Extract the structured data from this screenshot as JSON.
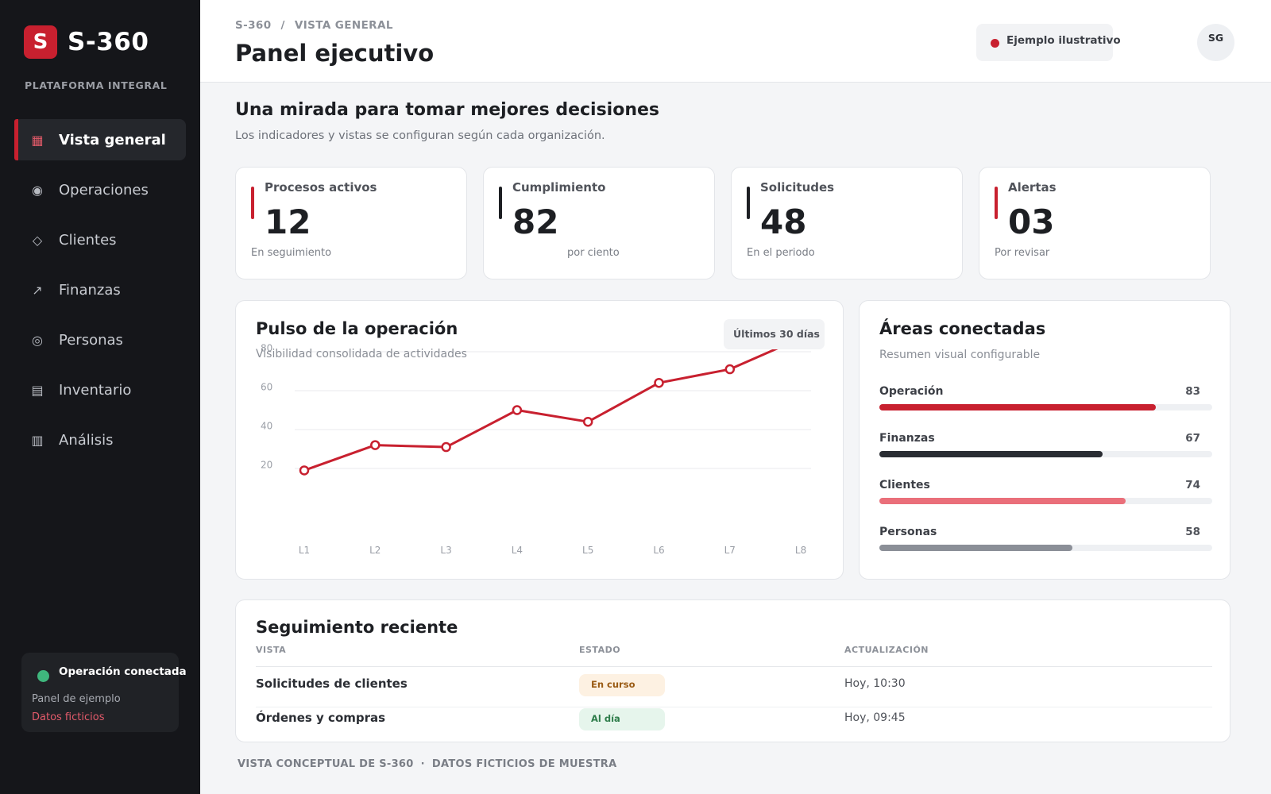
{
  "brand": {
    "mark": "S",
    "name": "S-360",
    "tagline": "PLATAFORMA INTEGRAL"
  },
  "sidebar": {
    "items": [
      {
        "label": "Vista general",
        "icon": "grid-icon",
        "glyph": "▦",
        "active": true
      },
      {
        "label": "Operaciones",
        "icon": "radio-icon",
        "glyph": "◉",
        "active": false
      },
      {
        "label": "Clientes",
        "icon": "diamond-icon",
        "glyph": "◇",
        "active": false
      },
      {
        "label": "Finanzas",
        "icon": "trend-arrow-icon",
        "glyph": "↗",
        "active": false
      },
      {
        "label": "Personas",
        "icon": "target-icon",
        "glyph": "◎",
        "active": false
      },
      {
        "label": "Inventario",
        "icon": "list-box-icon",
        "glyph": "▤",
        "active": false
      },
      {
        "label": "Análisis",
        "icon": "bars-box-icon",
        "glyph": "▥",
        "active": false
      }
    ],
    "status": {
      "title": "Operación conectada",
      "subtitle": "Panel de ejemplo",
      "note": "Datos ficticios"
    }
  },
  "header": {
    "breadcrumb": [
      "S-360",
      "/",
      "VISTA GENERAL"
    ],
    "title": "Panel ejecutivo",
    "badge": "Ejemplo ilustrativo",
    "avatar": "SG"
  },
  "intro": {
    "title": "Una mirada para tomar mejores decisiones",
    "subtitle": "Los indicadores y vistas se configuran según cada organización."
  },
  "kpis": [
    {
      "label": "Procesos activos",
      "value": "12",
      "sub": "En seguimiento",
      "accent": "#c8202f"
    },
    {
      "label": "Cumplimiento",
      "value": "82",
      "sub": "por ciento",
      "accent": "#1d1f23"
    },
    {
      "label": "Solicitudes",
      "value": "48",
      "sub": "En el periodo",
      "accent": "#1d1f23"
    },
    {
      "label": "Alertas",
      "value": "03",
      "sub": "Por revisar",
      "accent": "#c8202f"
    }
  ],
  "pulse": {
    "title": "Pulso de la operación",
    "subtitle": "Visibilidad consolidada de actividades",
    "range": "Últimos 30 días"
  },
  "chart_data": {
    "type": "line",
    "categories": [
      "L1",
      "L2",
      "L3",
      "L4",
      "L5",
      "L6",
      "L7",
      "L8"
    ],
    "series": [
      {
        "values": [
          19,
          32,
          31,
          50,
          44,
          64,
          71,
          87
        ],
        "color": "#c8202f"
      }
    ],
    "yticks": [
      20,
      40,
      60,
      80
    ],
    "ylim": [
      0,
      80
    ],
    "grid": true,
    "xlabel": "",
    "ylabel": ""
  },
  "areas": {
    "title": "Áreas conectadas",
    "subtitle": "Resumen visual configurable",
    "items": [
      {
        "name": "Operación",
        "value": 83,
        "color": "#c8202f"
      },
      {
        "name": "Finanzas",
        "value": 67,
        "color": "#2a2d33"
      },
      {
        "name": "Clientes",
        "value": 74,
        "color": "#ea6f7a"
      },
      {
        "name": "Personas",
        "value": 58,
        "color": "#8b8f97"
      }
    ]
  },
  "recent": {
    "title": "Seguimiento reciente",
    "columns": [
      "VISTA",
      "ESTADO",
      "ACTUALIZACIÓN"
    ],
    "rows": [
      {
        "name": "Solicitudes de clientes",
        "status": "En curso",
        "status_bg": "#fdf1e2",
        "status_fg": "#9a5b14",
        "updated": "Hoy, 10:30"
      },
      {
        "name": "Órdenes y compras",
        "status": "Al día",
        "status_bg": "#e6f5ec",
        "status_fg": "#2f7d4b",
        "updated": "Hoy, 09:45"
      }
    ]
  },
  "footer": [
    "VISTA CONCEPTUAL DE S-360",
    "·",
    "DATOS FICTICIOS DE MUESTRA"
  ]
}
